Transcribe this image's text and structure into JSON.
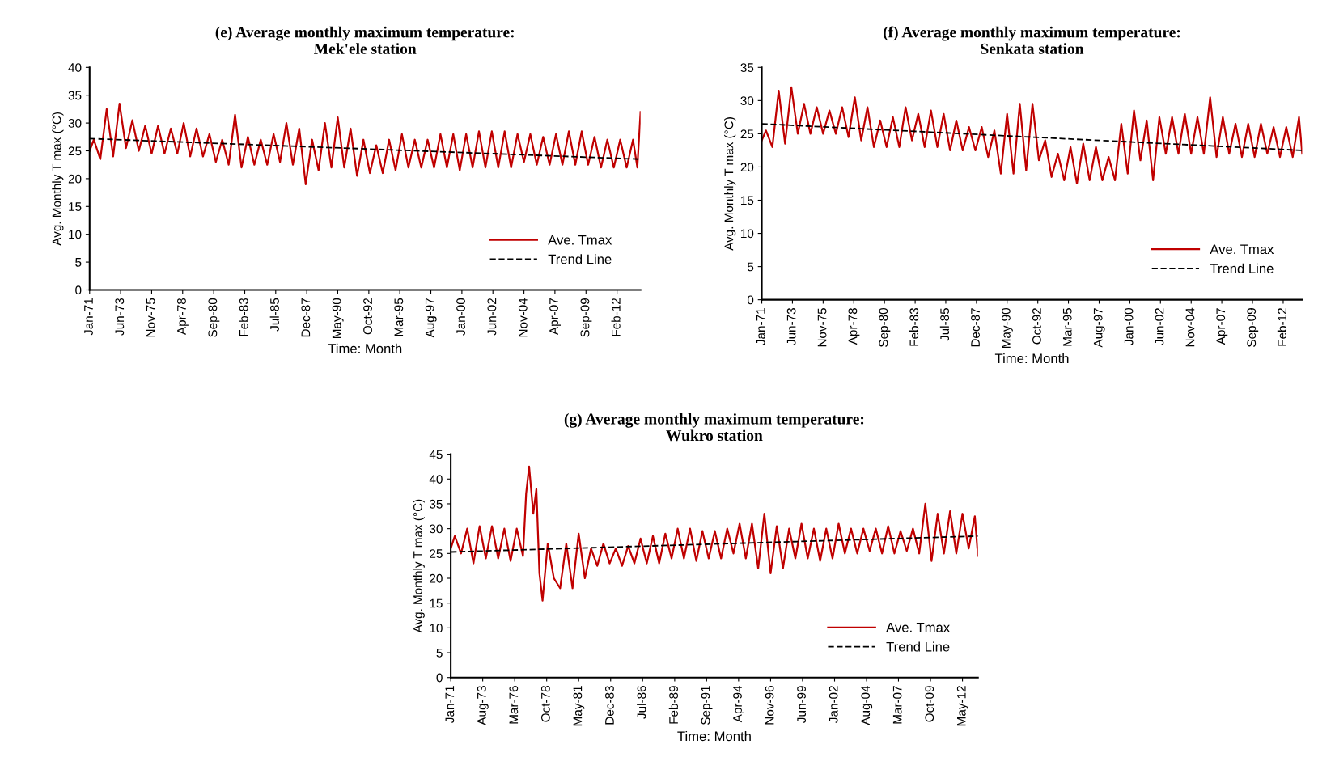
{
  "chart_data": [
    {
      "type": "line",
      "title": "(e) Average monthly maximum temperature:\nMek'ele station",
      "xlabel": "Time: Month",
      "ylabel": "Avg. Monthly T max (°C)",
      "ylim": [
        0,
        40
      ],
      "yticks": [
        0,
        5,
        10,
        15,
        20,
        25,
        30,
        35,
        40
      ],
      "xlim": [
        "1971-01",
        "2013-12"
      ],
      "xticks": [
        {
          "value": "1971-01",
          "label": "Jan-71"
        },
        {
          "value": "1973-06",
          "label": "Jun-73"
        },
        {
          "value": "1975-11",
          "label": "Nov-75"
        },
        {
          "value": "1978-04",
          "label": "Apr-78"
        },
        {
          "value": "1980-09",
          "label": "Sep-80"
        },
        {
          "value": "1983-02",
          "label": "Feb-83"
        },
        {
          "value": "1985-07",
          "label": "Jul-85"
        },
        {
          "value": "1987-12",
          "label": "Dec-87"
        },
        {
          "value": "1990-05",
          "label": "May-90"
        },
        {
          "value": "1992-10",
          "label": "Oct-92"
        },
        {
          "value": "1995-03",
          "label": "Mar-95"
        },
        {
          "value": "1997-08",
          "label": "Aug-97"
        },
        {
          "value": "2000-01",
          "label": "Jan-00"
        },
        {
          "value": "2002-06",
          "label": "Jun-02"
        },
        {
          "value": "2004-11",
          "label": "Nov-04"
        },
        {
          "value": "2007-04",
          "label": "Apr-07"
        },
        {
          "value": "2009-09",
          "label": "Sep-09"
        },
        {
          "value": "2012-02",
          "label": "Feb-12"
        }
      ],
      "grid": false,
      "legend": "lower right",
      "marker": "none",
      "series": [
        {
          "name": "Ave. Tmax",
          "color": "#c00000",
          "line_style": "solid",
          "x": [
            "1971-01",
            "1971-05",
            "1971-11",
            "1972-05",
            "1972-11",
            "1973-05",
            "1973-11",
            "1974-05",
            "1974-11",
            "1975-05",
            "1975-11",
            "1976-05",
            "1976-11",
            "1977-05",
            "1977-11",
            "1978-05",
            "1978-11",
            "1979-05",
            "1979-11",
            "1980-05",
            "1980-11",
            "1981-05",
            "1981-11",
            "1982-05",
            "1982-11",
            "1983-05",
            "1983-11",
            "1984-05",
            "1984-11",
            "1985-05",
            "1985-11",
            "1986-05",
            "1986-11",
            "1987-05",
            "1987-11",
            "1988-05",
            "1988-11",
            "1989-05",
            "1989-11",
            "1990-05",
            "1990-11",
            "1991-05",
            "1991-11",
            "1992-05",
            "1992-11",
            "1993-05",
            "1993-11",
            "1994-05",
            "1994-11",
            "1995-05",
            "1995-11",
            "1996-05",
            "1996-11",
            "1997-05",
            "1997-11",
            "1998-05",
            "1998-11",
            "1999-05",
            "1999-11",
            "2000-05",
            "2000-11",
            "2001-05",
            "2001-11",
            "2002-05",
            "2002-11",
            "2003-05",
            "2003-11",
            "2004-05",
            "2004-11",
            "2005-05",
            "2005-11",
            "2006-05",
            "2006-11",
            "2007-05",
            "2007-11",
            "2008-05",
            "2008-11",
            "2009-05",
            "2009-11",
            "2010-05",
            "2010-11",
            "2011-05",
            "2011-11",
            "2012-05",
            "2012-11",
            "2013-05",
            "2013-09",
            "2013-12"
          ],
          "values": [
            25,
            27,
            23.5,
            32.5,
            24,
            33.5,
            25.5,
            30.5,
            25,
            29.5,
            24.5,
            29.5,
            24.5,
            29,
            24.5,
            30,
            24,
            29,
            24,
            28,
            23,
            27,
            22.5,
            31.5,
            22,
            27.5,
            22.5,
            27,
            22.5,
            28,
            23,
            30,
            22.5,
            29,
            19,
            27,
            21.5,
            30,
            22,
            31,
            22,
            29,
            20.5,
            27,
            21,
            26,
            21,
            27,
            21.5,
            28,
            22,
            27,
            22,
            27,
            22,
            28,
            22,
            28,
            21.5,
            28,
            22,
            28.5,
            22,
            28.5,
            22,
            28.5,
            22,
            28,
            23,
            28,
            22.5,
            27.5,
            22.5,
            28,
            22.5,
            28.5,
            22.5,
            28.5,
            22.5,
            27.5,
            22,
            27,
            22,
            27,
            22,
            27,
            22,
            32
          ]
        },
        {
          "name": "Trend Line",
          "color": "#000000",
          "line_style": "dashed",
          "x": [
            "1971-01",
            "2013-12"
          ],
          "values": [
            27.2,
            23.5
          ]
        }
      ]
    },
    {
      "type": "line",
      "title": "(f) Average monthly maximum temperature:\nSenkata station",
      "xlabel": "Time: Month",
      "ylabel": "Avg. Monthly T max (°C)",
      "ylim": [
        0,
        35
      ],
      "yticks": [
        0,
        5,
        10,
        15,
        20,
        25,
        30,
        35
      ],
      "xlim": [
        "1971-01",
        "2013-08"
      ],
      "xticks": [
        {
          "value": "1971-01",
          "label": "Jan-71"
        },
        {
          "value": "1973-06",
          "label": "Jun-73"
        },
        {
          "value": "1975-11",
          "label": "Nov-75"
        },
        {
          "value": "1978-04",
          "label": "Apr-78"
        },
        {
          "value": "1980-09",
          "label": "Sep-80"
        },
        {
          "value": "1983-02",
          "label": "Feb-83"
        },
        {
          "value": "1985-07",
          "label": "Jul-85"
        },
        {
          "value": "1987-12",
          "label": "Dec-87"
        },
        {
          "value": "1990-05",
          "label": "May-90"
        },
        {
          "value": "1992-10",
          "label": "Oct-92"
        },
        {
          "value": "1995-03",
          "label": "Mar-95"
        },
        {
          "value": "1997-08",
          "label": "Aug-97"
        },
        {
          "value": "2000-01",
          "label": "Jan-00"
        },
        {
          "value": "2002-06",
          "label": "Jun-02"
        },
        {
          "value": "2004-11",
          "label": "Nov-04"
        },
        {
          "value": "2007-04",
          "label": "Apr-07"
        },
        {
          "value": "2009-09",
          "label": "Sep-09"
        },
        {
          "value": "2012-02",
          "label": "Feb-12"
        }
      ],
      "grid": false,
      "legend": "lower right",
      "marker": "none",
      "series": [
        {
          "name": "Ave. Tmax",
          "color": "#c00000",
          "line_style": "solid",
          "x": [
            "1971-01",
            "1971-05",
            "1971-11",
            "1972-05",
            "1972-11",
            "1973-05",
            "1973-11",
            "1974-05",
            "1974-11",
            "1975-05",
            "1975-11",
            "1976-05",
            "1976-11",
            "1977-05",
            "1977-11",
            "1978-05",
            "1978-11",
            "1979-05",
            "1979-11",
            "1980-05",
            "1980-11",
            "1981-05",
            "1981-11",
            "1982-05",
            "1982-11",
            "1983-05",
            "1983-11",
            "1984-05",
            "1984-11",
            "1985-05",
            "1985-11",
            "1986-05",
            "1986-11",
            "1987-05",
            "1987-11",
            "1988-05",
            "1988-11",
            "1989-05",
            "1989-11",
            "1990-05",
            "1990-11",
            "1991-05",
            "1991-11",
            "1992-05",
            "1992-11",
            "1993-05",
            "1993-11",
            "1994-05",
            "1994-11",
            "1995-05",
            "1995-11",
            "1996-05",
            "1996-11",
            "1997-05",
            "1997-11",
            "1998-05",
            "1998-11",
            "1999-05",
            "1999-11",
            "2000-05",
            "2000-11",
            "2001-05",
            "2001-11",
            "2002-05",
            "2002-11",
            "2003-05",
            "2003-11",
            "2004-05",
            "2004-11",
            "2005-05",
            "2005-11",
            "2006-05",
            "2006-11",
            "2007-05",
            "2007-11",
            "2008-05",
            "2008-11",
            "2009-05",
            "2009-11",
            "2010-05",
            "2010-11",
            "2011-05",
            "2011-11",
            "2012-05",
            "2012-11",
            "2013-05",
            "2013-08"
          ],
          "values": [
            24,
            25.5,
            23,
            31.5,
            23.5,
            32,
            25,
            29.5,
            25,
            29,
            25,
            28.5,
            25,
            29,
            24.5,
            30.5,
            24,
            29,
            23,
            27,
            23,
            27.5,
            23,
            29,
            24,
            28,
            23,
            28.5,
            23,
            28,
            22.5,
            27,
            22.5,
            26,
            22.5,
            26,
            21.5,
            25.5,
            19,
            28,
            19,
            29.5,
            19.5,
            29.5,
            21,
            24,
            18.5,
            22,
            18,
            23,
            17.5,
            23.5,
            18,
            23,
            18,
            21.5,
            18,
            26.5,
            19,
            28.5,
            21,
            27,
            18,
            27.5,
            22,
            27.5,
            22,
            28,
            22,
            27.5,
            22,
            30.5,
            21.5,
            27.5,
            22,
            26.5,
            21.5,
            26.5,
            21.5,
            26.5,
            22,
            26,
            21.5,
            26,
            21.5,
            27.5,
            22
          ]
        },
        {
          "name": "Trend Line",
          "color": "#000000",
          "line_style": "dashed",
          "x": [
            "1971-01",
            "2013-08"
          ],
          "values": [
            26.5,
            22.5
          ]
        }
      ]
    },
    {
      "type": "line",
      "title": "(g) Average monthly maximum temperature:\nWukro station",
      "xlabel": "Time: Month",
      "ylabel": "Avg. Monthly T max (°C)",
      "ylim": [
        0,
        45
      ],
      "yticks": [
        0,
        5,
        10,
        15,
        20,
        25,
        30,
        35,
        40,
        45
      ],
      "xlim": [
        "1971-01",
        "2013-08"
      ],
      "xticks": [
        {
          "value": "1971-01",
          "label": "Jan-71"
        },
        {
          "value": "1973-08",
          "label": "Aug-73"
        },
        {
          "value": "1976-03",
          "label": "Mar-76"
        },
        {
          "value": "1978-10",
          "label": "Oct-78"
        },
        {
          "value": "1981-05",
          "label": "May-81"
        },
        {
          "value": "1983-12",
          "label": "Dec-83"
        },
        {
          "value": "1986-07",
          "label": "Jul-86"
        },
        {
          "value": "1989-02",
          "label": "Feb-89"
        },
        {
          "value": "1991-09",
          "label": "Sep-91"
        },
        {
          "value": "1994-04",
          "label": "Apr-94"
        },
        {
          "value": "1996-11",
          "label": "Nov-96"
        },
        {
          "value": "1999-06",
          "label": "Jun-99"
        },
        {
          "value": "2002-01",
          "label": "Jan-02"
        },
        {
          "value": "2004-08",
          "label": "Aug-04"
        },
        {
          "value": "2007-03",
          "label": "Mar-07"
        },
        {
          "value": "2009-10",
          "label": "Oct-09"
        },
        {
          "value": "2012-05",
          "label": "May-12"
        }
      ],
      "grid": false,
      "legend": "lower right",
      "marker": "none",
      "series": [
        {
          "name": "Ave. Tmax",
          "color": "#c00000",
          "line_style": "solid",
          "x": [
            "1971-01",
            "1971-05",
            "1971-11",
            "1972-05",
            "1972-11",
            "1973-05",
            "1973-11",
            "1974-05",
            "1974-11",
            "1975-05",
            "1975-11",
            "1976-05",
            "1976-11",
            "1977-02",
            "1977-05",
            "1977-09",
            "1977-12",
            "1978-03",
            "1978-06",
            "1978-11",
            "1979-05",
            "1979-11",
            "1980-05",
            "1980-11",
            "1981-05",
            "1981-11",
            "1982-05",
            "1982-11",
            "1983-05",
            "1983-11",
            "1984-05",
            "1984-11",
            "1985-05",
            "1985-11",
            "1986-05",
            "1986-11",
            "1987-05",
            "1987-11",
            "1988-05",
            "1988-11",
            "1989-05",
            "1989-11",
            "1990-05",
            "1990-11",
            "1991-05",
            "1991-11",
            "1992-05",
            "1992-11",
            "1993-05",
            "1993-11",
            "1994-05",
            "1994-11",
            "1995-05",
            "1995-11",
            "1996-05",
            "1996-11",
            "1997-05",
            "1997-11",
            "1998-05",
            "1998-11",
            "1999-05",
            "1999-11",
            "2000-05",
            "2000-11",
            "2001-05",
            "2001-11",
            "2002-05",
            "2002-11",
            "2003-05",
            "2003-11",
            "2004-05",
            "2004-11",
            "2005-05",
            "2005-11",
            "2006-05",
            "2006-11",
            "2007-05",
            "2007-11",
            "2008-05",
            "2008-11",
            "2009-05",
            "2009-11",
            "2010-05",
            "2010-11",
            "2011-05",
            "2011-11",
            "2012-05",
            "2012-11",
            "2013-05",
            "2013-08"
          ],
          "values": [
            26,
            28.5,
            25,
            30,
            23,
            30.5,
            24,
            30.5,
            24,
            30,
            23.5,
            30,
            24.5,
            37,
            42.5,
            33,
            38,
            21,
            15.5,
            27,
            20,
            18,
            27,
            18,
            29,
            20,
            26,
            22.5,
            27,
            23,
            26,
            22.5,
            26.5,
            23,
            28,
            23,
            28.5,
            23,
            29,
            24,
            30,
            24,
            30,
            23.5,
            29.5,
            24,
            29.5,
            24,
            30,
            25,
            31,
            24,
            31,
            22,
            33,
            21,
            30.5,
            22,
            30,
            24,
            31,
            24,
            30,
            23.5,
            30,
            24,
            31,
            25,
            30,
            25,
            30,
            25.5,
            30,
            25,
            30.5,
            25,
            29.5,
            25.5,
            30,
            25,
            35,
            23.5,
            33,
            25,
            33.5,
            25,
            33,
            26,
            32.5,
            24.5
          ]
        },
        {
          "name": "Trend Line",
          "color": "#000000",
          "line_style": "dashed",
          "x": [
            "1971-01",
            "2013-08"
          ],
          "values": [
            25.3,
            28.5
          ]
        }
      ]
    }
  ]
}
